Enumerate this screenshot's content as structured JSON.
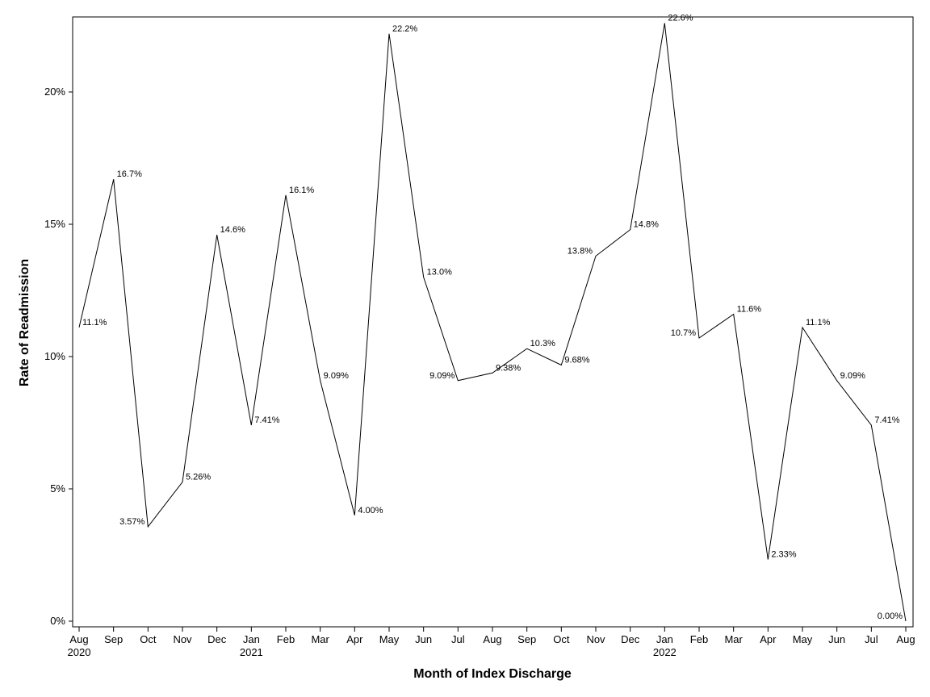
{
  "chart_data": {
    "type": "line",
    "title": "",
    "xlabel": "Month of Index Discharge",
    "ylabel": "Rate of Readmission",
    "ylim": [
      0,
      22.8
    ],
    "yticks": [
      0,
      5,
      10,
      15,
      20
    ],
    "ytick_labels": [
      "0%",
      "5%",
      "10%",
      "15%",
      "20%"
    ],
    "categories": [
      "Aug",
      "Sep",
      "Oct",
      "Nov",
      "Dec",
      "Jan",
      "Feb",
      "Mar",
      "Apr",
      "May",
      "Jun",
      "Jul",
      "Aug",
      "Sep",
      "Oct",
      "Nov",
      "Dec",
      "Jan",
      "Feb",
      "Mar",
      "Apr",
      "May",
      "Jun",
      "Jul",
      "Aug"
    ],
    "year_labels": [
      "2020",
      "",
      "",
      "",
      "",
      "2021",
      "",
      "",
      "",
      "",
      "",
      "",
      "",
      "",
      "",
      "",
      "",
      "2022",
      "",
      "",
      "",
      "",
      "",
      "",
      ""
    ],
    "values": [
      11.1,
      16.7,
      3.57,
      5.26,
      14.6,
      7.41,
      16.1,
      9.09,
      4.0,
      22.2,
      13.0,
      9.09,
      9.38,
      10.3,
      9.68,
      13.8,
      14.8,
      22.6,
      10.7,
      11.6,
      2.33,
      11.1,
      9.09,
      7.41,
      0.0
    ],
    "value_labels": [
      "11.1%",
      "16.7%",
      "3.57%",
      "5.26%",
      "14.6%",
      "7.41%",
      "16.1%",
      "9.09%",
      "4.00%",
      "22.2%",
      "13.0%",
      "9.09%",
      "9.38%",
      "10.3%",
      "9.68%",
      "13.8%",
      "14.8%",
      "22.6%",
      "10.7%",
      "11.6%",
      "2.33%",
      "11.1%",
      "9.09%",
      "7.41%",
      "0.00%"
    ],
    "label_positions": [
      "right",
      "right",
      "left",
      "right",
      "right",
      "right",
      "right",
      "right",
      "right",
      "right",
      "right",
      "left",
      "right",
      "right",
      "right",
      "left",
      "right",
      "right",
      "left",
      "right",
      "right",
      "right",
      "right",
      "right",
      "left"
    ],
    "grid": false,
    "line_color": "#000000"
  }
}
